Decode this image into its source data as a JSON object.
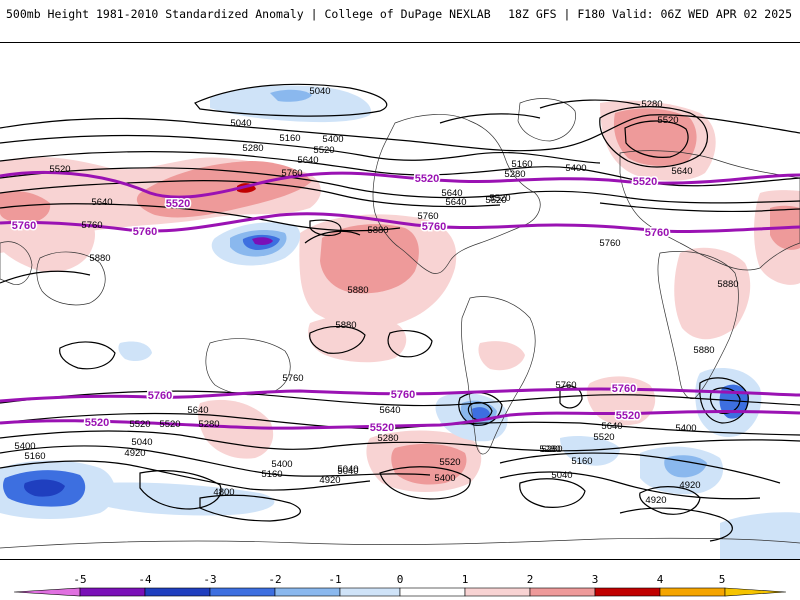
{
  "header": {
    "title": "500mb Height 1981-2010 Standardized Anomaly | College of DuPage NEXLAB",
    "valid": "18Z GFS | F180 Valid: 06Z WED APR 02 2025"
  },
  "colors": {
    "pos1": "#f8d3d3",
    "pos2": "#ee9a9a",
    "pos3": "#e06060",
    "pos4": "#c00000",
    "neg1": "#cfe3f8",
    "neg2": "#8ab8ee",
    "neg3": "#3d6fe0",
    "neg4": "#1f3fbf",
    "neg5": "#7a10b8",
    "contour": "#000000",
    "highlight": "#9a12b3",
    "coast": "#333333"
  },
  "map": {
    "black_contour_labels": [
      "5040",
      "5040",
      "5160",
      "5280",
      "5400",
      "5520",
      "5640",
      "5760",
      "5520",
      "5640",
      "5760",
      "5880",
      "5880",
      "5880",
      "5880",
      "5160",
      "5280",
      "5400",
      "5520",
      "5640",
      "5760",
      "5280",
      "5520",
      "5640",
      "5760",
      "5880",
      "5880",
      "5760",
      "5640",
      "5520",
      "5280",
      "5400",
      "5160",
      "5040",
      "4920",
      "5040",
      "5400",
      "5160",
      "5040",
      "4920",
      "4800",
      "5640",
      "5280",
      "5520",
      "5400",
      "5280",
      "5160",
      "5040",
      "5760",
      "5640",
      "5520",
      "5400",
      "4920",
      "4920",
      "5640",
      "5520",
      "5280",
      "5520"
    ],
    "highlight_labels": [
      "5520",
      "5760",
      "5520",
      "5760",
      "5520",
      "5760",
      "5760",
      "5760",
      "5760",
      "5760",
      "5520",
      "5520",
      "5520"
    ]
  },
  "legend": {
    "ticks": [
      "-5",
      "-4",
      "-3",
      "-2",
      "-1",
      "0",
      "1",
      "2",
      "3",
      "4",
      "5"
    ]
  }
}
